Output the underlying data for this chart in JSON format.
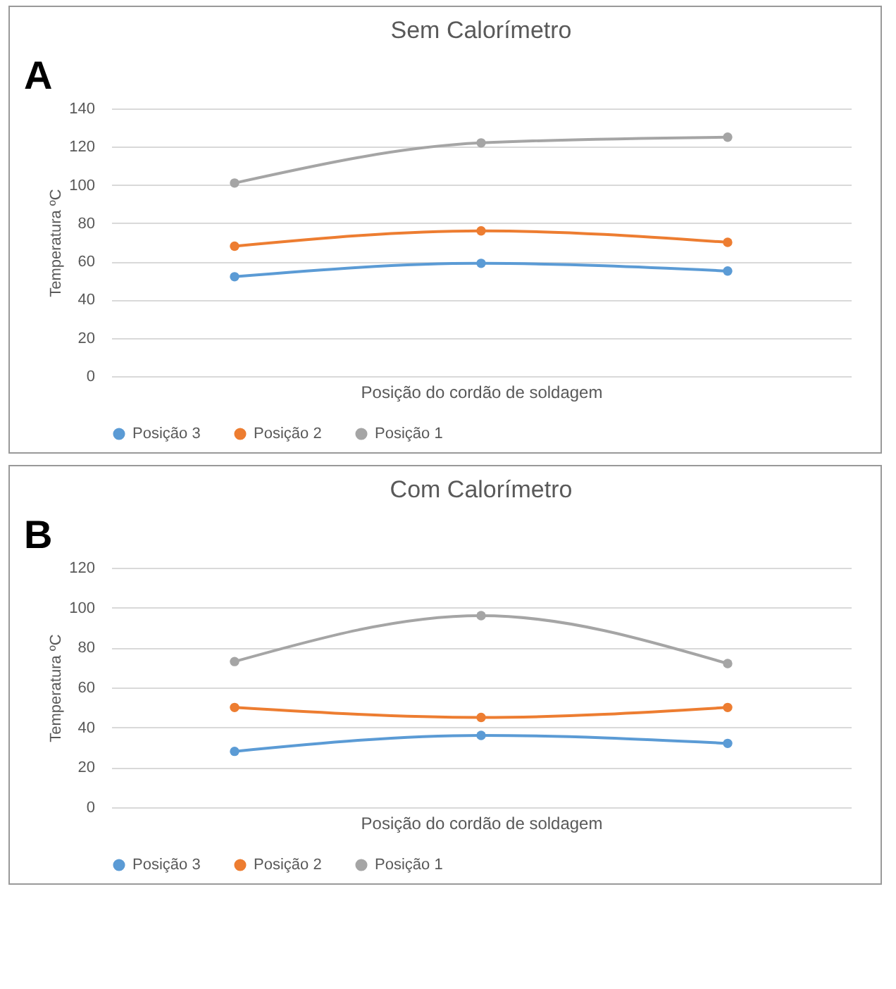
{
  "chart_data": [
    {
      "type": "line",
      "title": "Sem Calorímetro",
      "xlabel": "Posição do cordão de soldagem",
      "ylabel": "Temperatura ºC",
      "annotations": [
        "A"
      ],
      "categories": [
        null,
        null,
        null
      ],
      "ylim": [
        0,
        140
      ],
      "yticks": [
        0,
        20,
        40,
        60,
        80,
        100,
        120,
        140
      ],
      "grid": "y",
      "legend": "bottom",
      "marker": "circle",
      "line_style": "solid",
      "series": [
        {
          "name": "Posição 3",
          "color": "#5b9bd5",
          "values": [
            52,
            59,
            55
          ]
        },
        {
          "name": "Posição 2",
          "color": "#ed7d31",
          "values": [
            68,
            76,
            70
          ]
        },
        {
          "name": "Posição 1",
          "color": "#a5a5a5",
          "values": [
            101,
            122,
            125
          ]
        }
      ]
    },
    {
      "type": "line",
      "title": "Com Calorímetro",
      "xlabel": "Posição do cordão de soldagem",
      "ylabel": "Temperatura ºC",
      "annotations": [
        "B"
      ],
      "categories": [
        null,
        null,
        null
      ],
      "ylim": [
        0,
        120
      ],
      "yticks": [
        0,
        20,
        40,
        60,
        80,
        100,
        120
      ],
      "grid": "y",
      "legend": "bottom",
      "marker": "circle",
      "line_style": "solid",
      "series": [
        {
          "name": "Posição 3",
          "color": "#5b9bd5",
          "values": [
            28,
            36,
            32
          ]
        },
        {
          "name": "Posição 2",
          "color": "#ed7d31",
          "values": [
            50,
            45,
            50
          ]
        },
        {
          "name": "Posição 1",
          "color": "#a5a5a5",
          "values": [
            73,
            96,
            72
          ]
        }
      ]
    }
  ]
}
